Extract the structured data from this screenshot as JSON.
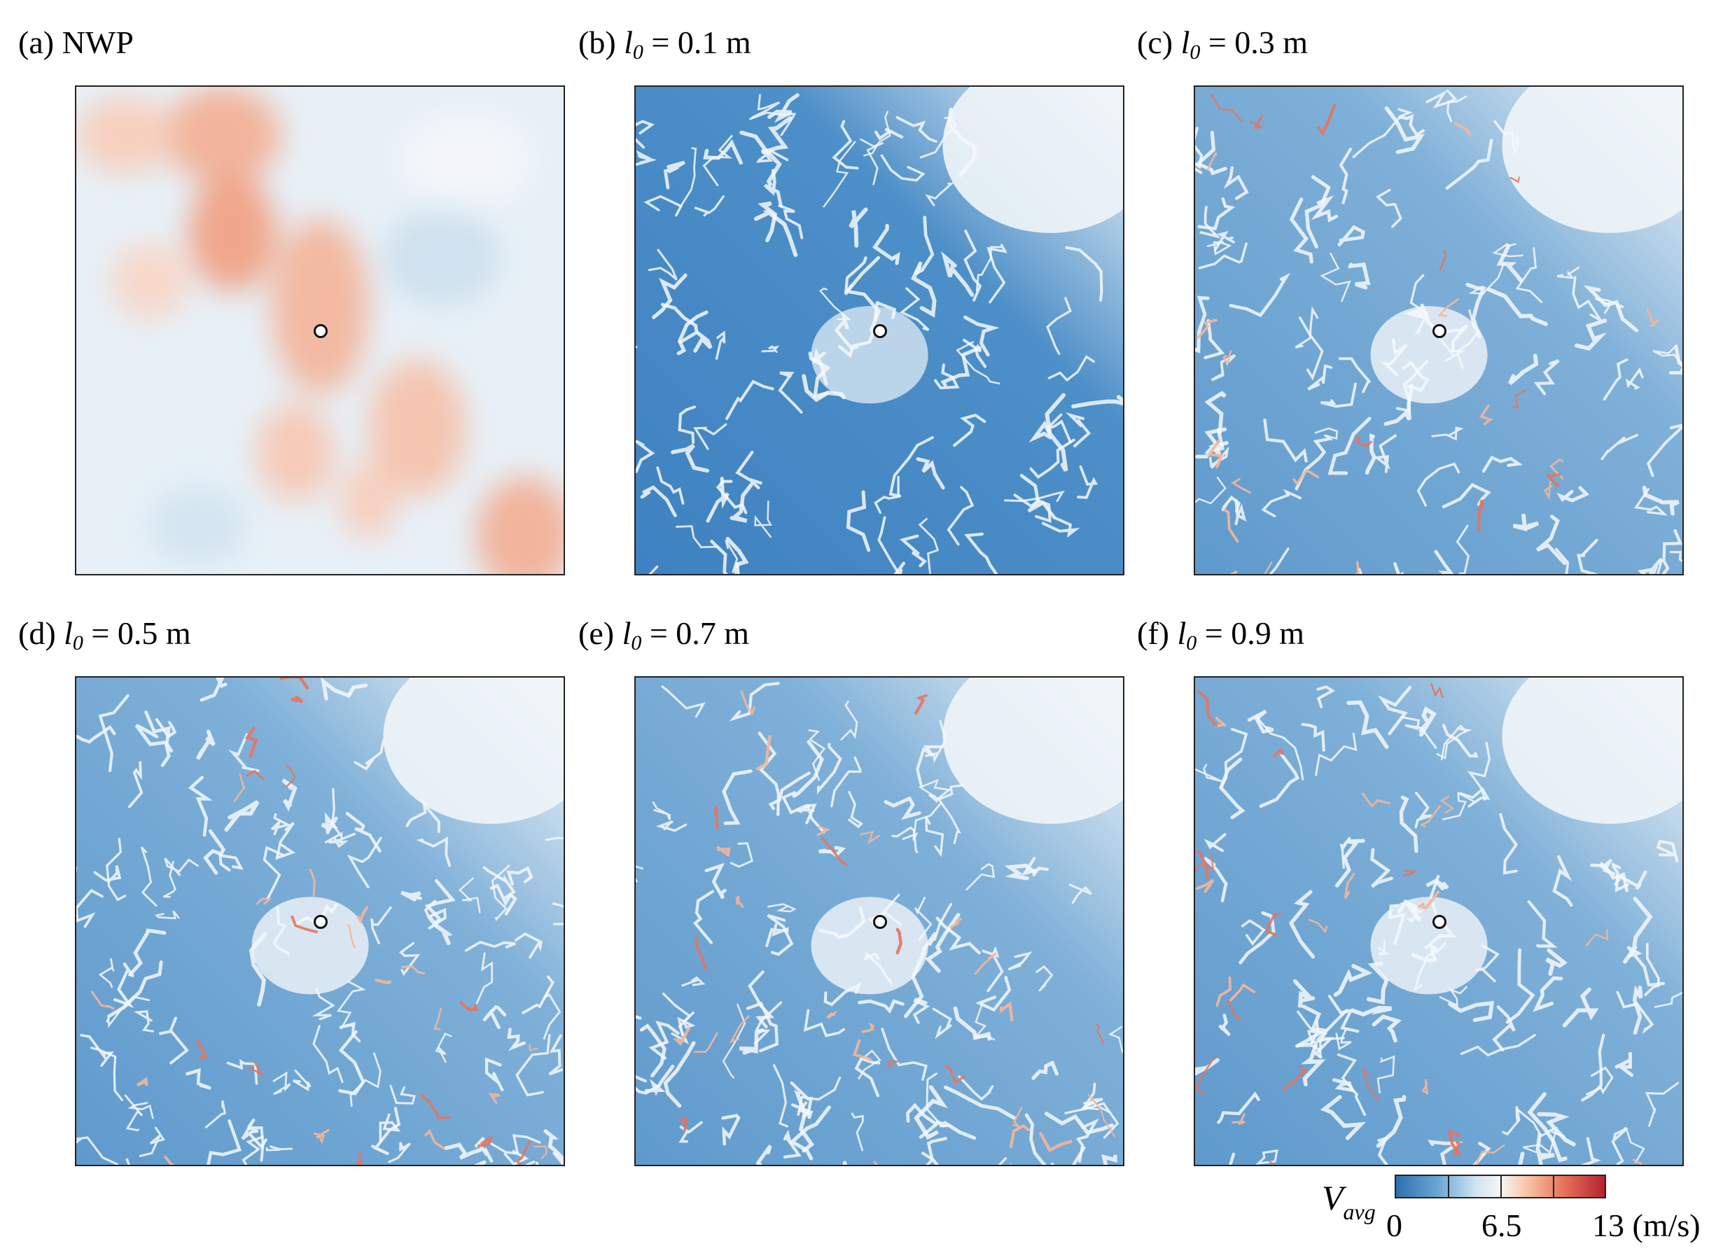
{
  "panels": [
    {
      "id": "a",
      "prefix": "(a) ",
      "title": "NWP",
      "variable": "",
      "subscript": "",
      "equals": "",
      "value": ""
    },
    {
      "id": "b",
      "prefix": "(b) ",
      "title": "",
      "variable": "l",
      "subscript": "0",
      "equals": " = ",
      "value": "0.1 m"
    },
    {
      "id": "c",
      "prefix": "(c) ",
      "title": "",
      "variable": "l",
      "subscript": "0",
      "equals": " = ",
      "value": "0.3 m"
    },
    {
      "id": "d",
      "prefix": "(d) ",
      "title": "",
      "variable": "l",
      "subscript": "0",
      "equals": " = ",
      "value": "0.5 m"
    },
    {
      "id": "e",
      "prefix": "(e) ",
      "title": "",
      "variable": "l",
      "subscript": "0",
      "equals": " = ",
      "value": "0.7 m"
    },
    {
      "id": "f",
      "prefix": "(f) ",
      "title": "",
      "variable": "l",
      "subscript": "0",
      "equals": " = ",
      "value": "0.9 m"
    }
  ],
  "colorbar": {
    "variable": "V",
    "subscript": "avg",
    "min_label": "0",
    "mid_label": "6.5",
    "max_label": "13 (m/s)",
    "colors": [
      "#2f6fb1",
      "#6aa6d4",
      "#cfe3f0",
      "#f6f6f6",
      "#f7c8aa",
      "#e8735c",
      "#b4222f"
    ]
  }
}
